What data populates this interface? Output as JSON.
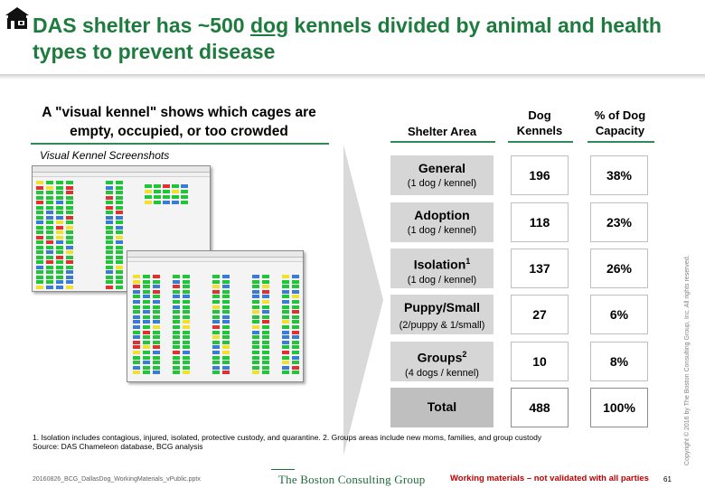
{
  "header": {
    "logo_icon": "bcg-shelter-logo-icon",
    "title_before": "DAS shelter has ~500 ",
    "title_underlined": "dog",
    "title_after": " kennels divided by animal and health types to prevent disease"
  },
  "left": {
    "heading": "A \"visual kennel\" shows which cages are empty, occupied, or too crowded",
    "caption": "Visual Kennel Screenshots"
  },
  "table": {
    "headers": {
      "area": "Shelter Area",
      "kennels": "Dog Kennels",
      "capacity": "% of Dog Capacity"
    },
    "rows": [
      {
        "name": "General",
        "sup": "",
        "sub": "(1 dog / kennel)",
        "kennels": "196",
        "capacity": "38%"
      },
      {
        "name": "Adoption",
        "sup": "",
        "sub": "(1 dog / kennel)",
        "kennels": "118",
        "capacity": "23%"
      },
      {
        "name": "Isolation",
        "sup": "1",
        "sub": "(1 dog / kennel)",
        "kennels": "137",
        "capacity": "26%"
      },
      {
        "name": "Puppy/Small",
        "sup": "",
        "sub": "(2/puppy & 1/small)",
        "kennels": "27",
        "capacity": "6%"
      },
      {
        "name": "Groups",
        "sup": "2",
        "sub": "(4 dogs / kennel)",
        "kennels": "10",
        "capacity": "8%"
      }
    ],
    "total": {
      "name": "Total",
      "kennels": "488",
      "capacity": "100%"
    }
  },
  "footer": {
    "note1": "1. Isolation includes contagious, injured, isolated, protective custody, and quarantine. 2. Groups areas include new moms, families, and group custody",
    "source": "Source: DAS Chameleon database, BCG analysis",
    "file": "20160826_BCG_DallasDog_WorkingMaterials_vPublic.pptx",
    "brand": "The Boston Consulting Group",
    "warning": "Working materials – not validated with all parties",
    "page": "61",
    "copyright": "Copyright © 2016 by The Boston Consulting Group, Inc. All rights reserved."
  },
  "colors": {
    "title_green": "#1e7b3e",
    "rule_green": "#2e8b57",
    "area_gray": "#d6d6d6",
    "warning_red": "#c00000"
  }
}
